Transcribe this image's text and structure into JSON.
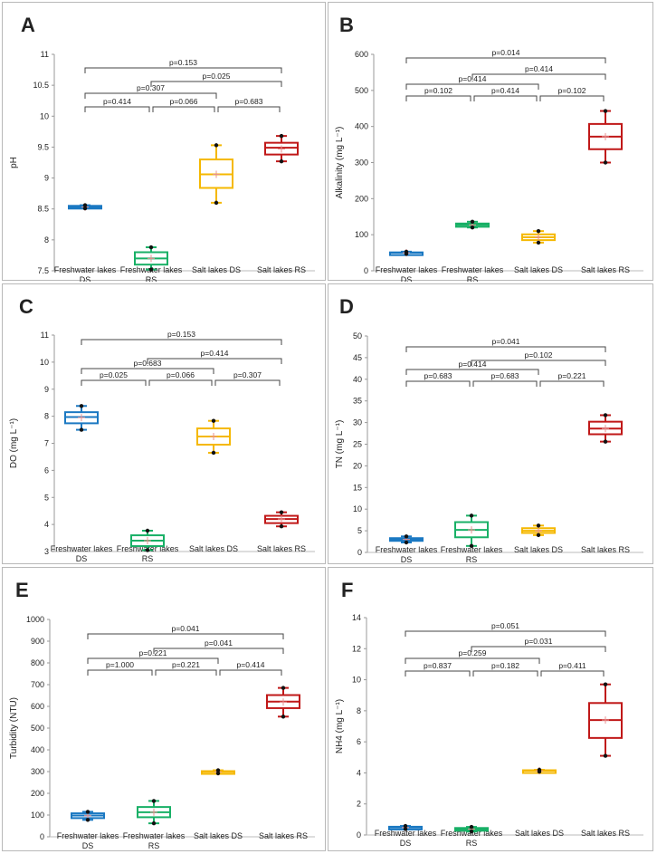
{
  "colors": {
    "ds_fresh": "#1a78c2",
    "rs_fresh": "#18b066",
    "ds_salt": "#f5b800",
    "rs_salt": "#c01818",
    "mean": "#e89090",
    "bracket": "#444444"
  },
  "chart_data": [
    {
      "panel": "A",
      "type": "box",
      "ylabel": "pH",
      "ylim": [
        7.5,
        11
      ],
      "yticks": [
        "7.5",
        "8",
        "8.5",
        "9",
        "9.5",
        "10",
        "10.5",
        "11"
      ],
      "categories": [
        "Freshwater lakes DS",
        "Freshwater lakes RS",
        "Salt lakes DS",
        "Salt lakes RS"
      ],
      "boxes": [
        {
          "min": 8.51,
          "q1": 8.52,
          "median": 8.53,
          "q3": 8.55,
          "max": 8.56,
          "mean": 8.53
        },
        {
          "min": 7.52,
          "q1": 7.6,
          "median": 7.7,
          "q3": 7.8,
          "max": 7.88,
          "mean": 7.7
        },
        {
          "min": 8.6,
          "q1": 8.84,
          "median": 9.06,
          "q3": 9.3,
          "max": 9.53,
          "mean": 9.06
        },
        {
          "min": 9.27,
          "q1": 9.38,
          "median": 9.49,
          "q3": 9.57,
          "max": 9.68,
          "mean": 9.47
        }
      ],
      "comparisons": [
        {
          "from": 1,
          "to": 2,
          "label": "p=0.414",
          "level": 0
        },
        {
          "from": 2,
          "to": 3,
          "label": "p=0.066",
          "level": 0
        },
        {
          "from": 3,
          "to": 4,
          "label": "p=0.683",
          "level": 0
        },
        {
          "from": 1,
          "to": 3,
          "label": "p=0.307",
          "level": 1
        },
        {
          "from": 2,
          "to": 4,
          "label": "p=0.025",
          "level": 2
        },
        {
          "from": 1,
          "to": 4,
          "label": "p=0.153",
          "level": 3
        }
      ]
    },
    {
      "panel": "B",
      "type": "box",
      "ylabel": "Alkalinity  (mg L⁻¹)",
      "ylim": [
        0,
        600
      ],
      "yticks": [
        "0",
        "100",
        "200",
        "300",
        "400",
        "500",
        "600"
      ],
      "categories": [
        "Freshwater lakes DS",
        "Freshwater lakes RS",
        "Salt lakes DS",
        "Salt lakes RS"
      ],
      "boxes": [
        {
          "min": 47,
          "q1": 48,
          "median": 50,
          "q3": 51,
          "max": 53,
          "mean": 50
        },
        {
          "min": 120,
          "q1": 122,
          "median": 127,
          "q3": 131,
          "max": 136,
          "mean": 127
        },
        {
          "min": 78,
          "q1": 85,
          "median": 93,
          "q3": 101,
          "max": 110,
          "mean": 93
        },
        {
          "min": 300,
          "q1": 337,
          "median": 372,
          "q3": 407,
          "max": 443,
          "mean": 372
        }
      ],
      "comparisons": [
        {
          "from": 1,
          "to": 2,
          "label": "p=0.102",
          "level": 0
        },
        {
          "from": 2,
          "to": 3,
          "label": "p=0.414",
          "level": 0
        },
        {
          "from": 3,
          "to": 4,
          "label": "p=0.102",
          "level": 0
        },
        {
          "from": 1,
          "to": 3,
          "label": "p=0.414",
          "level": 1
        },
        {
          "from": 2,
          "to": 4,
          "label": "p=0.414",
          "level": 2
        },
        {
          "from": 1,
          "to": 4,
          "label": "p=0.014",
          "level": 3
        }
      ]
    },
    {
      "panel": "C",
      "type": "box",
      "ylabel": "DO  (mg L⁻¹)",
      "ylim": [
        3,
        11
      ],
      "yticks": [
        "3",
        "4",
        "5",
        "6",
        "7",
        "8",
        "9",
        "10",
        "11"
      ],
      "categories": [
        "Freshwater lakes DS",
        "Freshwater lakes RS",
        "Salt lakes DS",
        "Salt lakes RS"
      ],
      "boxes": [
        {
          "min": 7.5,
          "q1": 7.74,
          "median": 7.97,
          "q3": 8.15,
          "max": 8.38,
          "mean": 7.95
        },
        {
          "min": 3.05,
          "q1": 3.2,
          "median": 3.4,
          "q3": 3.6,
          "max": 3.77,
          "mean": 3.4
        },
        {
          "min": 6.65,
          "q1": 6.95,
          "median": 7.25,
          "q3": 7.55,
          "max": 7.83,
          "mean": 7.25
        },
        {
          "min": 3.93,
          "q1": 4.05,
          "median": 4.2,
          "q3": 4.32,
          "max": 4.45,
          "mean": 4.2
        }
      ],
      "comparisons": [
        {
          "from": 1,
          "to": 2,
          "label": "p=0.025",
          "level": 0
        },
        {
          "from": 2,
          "to": 3,
          "label": "p=0.066",
          "level": 0
        },
        {
          "from": 3,
          "to": 4,
          "label": "p=0.307",
          "level": 0
        },
        {
          "from": 1,
          "to": 3,
          "label": "p=0.683",
          "level": 1
        },
        {
          "from": 2,
          "to": 4,
          "label": "p=0.414",
          "level": 2
        },
        {
          "from": 1,
          "to": 4,
          "label": "p=0.153",
          "level": 3
        }
      ]
    },
    {
      "panel": "D",
      "type": "box",
      "ylabel": "TN  (mg L⁻¹)",
      "ylim": [
        0,
        50
      ],
      "yticks": [
        "0",
        "5",
        "10",
        "15",
        "20",
        "25",
        "30",
        "35",
        "40",
        "45",
        "50"
      ],
      "categories": [
        "Freshwater lakes DS",
        "Freshwater lakes RS",
        "Salt lakes DS",
        "Salt lakes RS"
      ],
      "boxes": [
        {
          "min": 2.3,
          "q1": 2.7,
          "median": 3.0,
          "q3": 3.3,
          "max": 3.7,
          "mean": 3.0
        },
        {
          "min": 1.5,
          "q1": 3.5,
          "median": 5.2,
          "q3": 7.0,
          "max": 8.5,
          "mean": 5.2
        },
        {
          "min": 4.0,
          "q1": 4.5,
          "median": 5.0,
          "q3": 5.6,
          "max": 6.2,
          "mean": 5.0
        },
        {
          "min": 25.6,
          "q1": 27.3,
          "median": 28.6,
          "q3": 30.2,
          "max": 31.7,
          "mean": 28.6
        }
      ],
      "comparisons": [
        {
          "from": 1,
          "to": 2,
          "label": "p=0.683",
          "level": 0
        },
        {
          "from": 2,
          "to": 3,
          "label": "p=0.683",
          "level": 0
        },
        {
          "from": 3,
          "to": 4,
          "label": "p=0.221",
          "level": 0
        },
        {
          "from": 1,
          "to": 3,
          "label": "p=0.414",
          "level": 1
        },
        {
          "from": 2,
          "to": 4,
          "label": "p=0.102",
          "level": 2
        },
        {
          "from": 1,
          "to": 4,
          "label": "p=0.041",
          "level": 3
        }
      ]
    },
    {
      "panel": "E",
      "type": "box",
      "ylabel": "Turbidity  (NTU)",
      "ylim": [
        0,
        1000
      ],
      "yticks": [
        "0",
        "100",
        "200",
        "300",
        "400",
        "500",
        "600",
        "700",
        "800",
        "900",
        "1000"
      ],
      "categories": [
        "Freshwater lakes DS",
        "Freshwater lakes RS",
        "Salt lakes DS",
        "Salt lakes RS"
      ],
      "boxes": [
        {
          "min": 78,
          "q1": 86,
          "median": 98,
          "q3": 108,
          "max": 115,
          "mean": 97
        },
        {
          "min": 62,
          "q1": 90,
          "median": 113,
          "q3": 137,
          "max": 165,
          "mean": 113
        },
        {
          "min": 292,
          "q1": 296,
          "median": 299,
          "q3": 302,
          "max": 306,
          "mean": 299
        },
        {
          "min": 553,
          "q1": 592,
          "median": 622,
          "q3": 652,
          "max": 685,
          "mean": 620
        }
      ],
      "comparisons": [
        {
          "from": 1,
          "to": 2,
          "label": "p=1.000",
          "level": 0
        },
        {
          "from": 2,
          "to": 3,
          "label": "p=0.221",
          "level": 0
        },
        {
          "from": 3,
          "to": 4,
          "label": "p=0.414",
          "level": 0
        },
        {
          "from": 1,
          "to": 3,
          "label": "p=0.221",
          "level": 1
        },
        {
          "from": 2,
          "to": 4,
          "label": "p=0.041",
          "level": 2
        },
        {
          "from": 1,
          "to": 4,
          "label": "p=0.041",
          "level": 3
        }
      ]
    },
    {
      "panel": "F",
      "type": "box",
      "ylabel": "NH4  (mg L⁻¹)",
      "ylim": [
        0,
        14
      ],
      "yticks": [
        "0",
        "2",
        "4",
        "6",
        "8",
        "10",
        "12",
        "14"
      ],
      "categories": [
        "Freshwater lakes DS",
        "Freshwater lakes RS",
        "Salt lakes DS",
        "Salt lakes RS"
      ],
      "boxes": [
        {
          "min": 0.38,
          "q1": 0.43,
          "median": 0.48,
          "q3": 0.53,
          "max": 0.58,
          "mean": 0.48
        },
        {
          "min": 0.22,
          "q1": 0.3,
          "median": 0.38,
          "q3": 0.45,
          "max": 0.52,
          "mean": 0.38
        },
        {
          "min": 4.08,
          "q1": 4.11,
          "median": 4.14,
          "q3": 4.17,
          "max": 4.2,
          "mean": 4.14
        },
        {
          "min": 5.1,
          "q1": 6.25,
          "median": 7.4,
          "q3": 8.5,
          "max": 9.7,
          "mean": 7.4
        }
      ],
      "comparisons": [
        {
          "from": 1,
          "to": 2,
          "label": "p=0.837",
          "level": 0
        },
        {
          "from": 2,
          "to": 3,
          "label": "p=0.182",
          "level": 0
        },
        {
          "from": 3,
          "to": 4,
          "label": "p=0.411",
          "level": 0
        },
        {
          "from": 1,
          "to": 3,
          "label": "p=0.259",
          "level": 1
        },
        {
          "from": 2,
          "to": 4,
          "label": "p=0.031",
          "level": 2
        },
        {
          "from": 1,
          "to": 4,
          "label": "p=0.051",
          "level": 3
        }
      ]
    }
  ]
}
